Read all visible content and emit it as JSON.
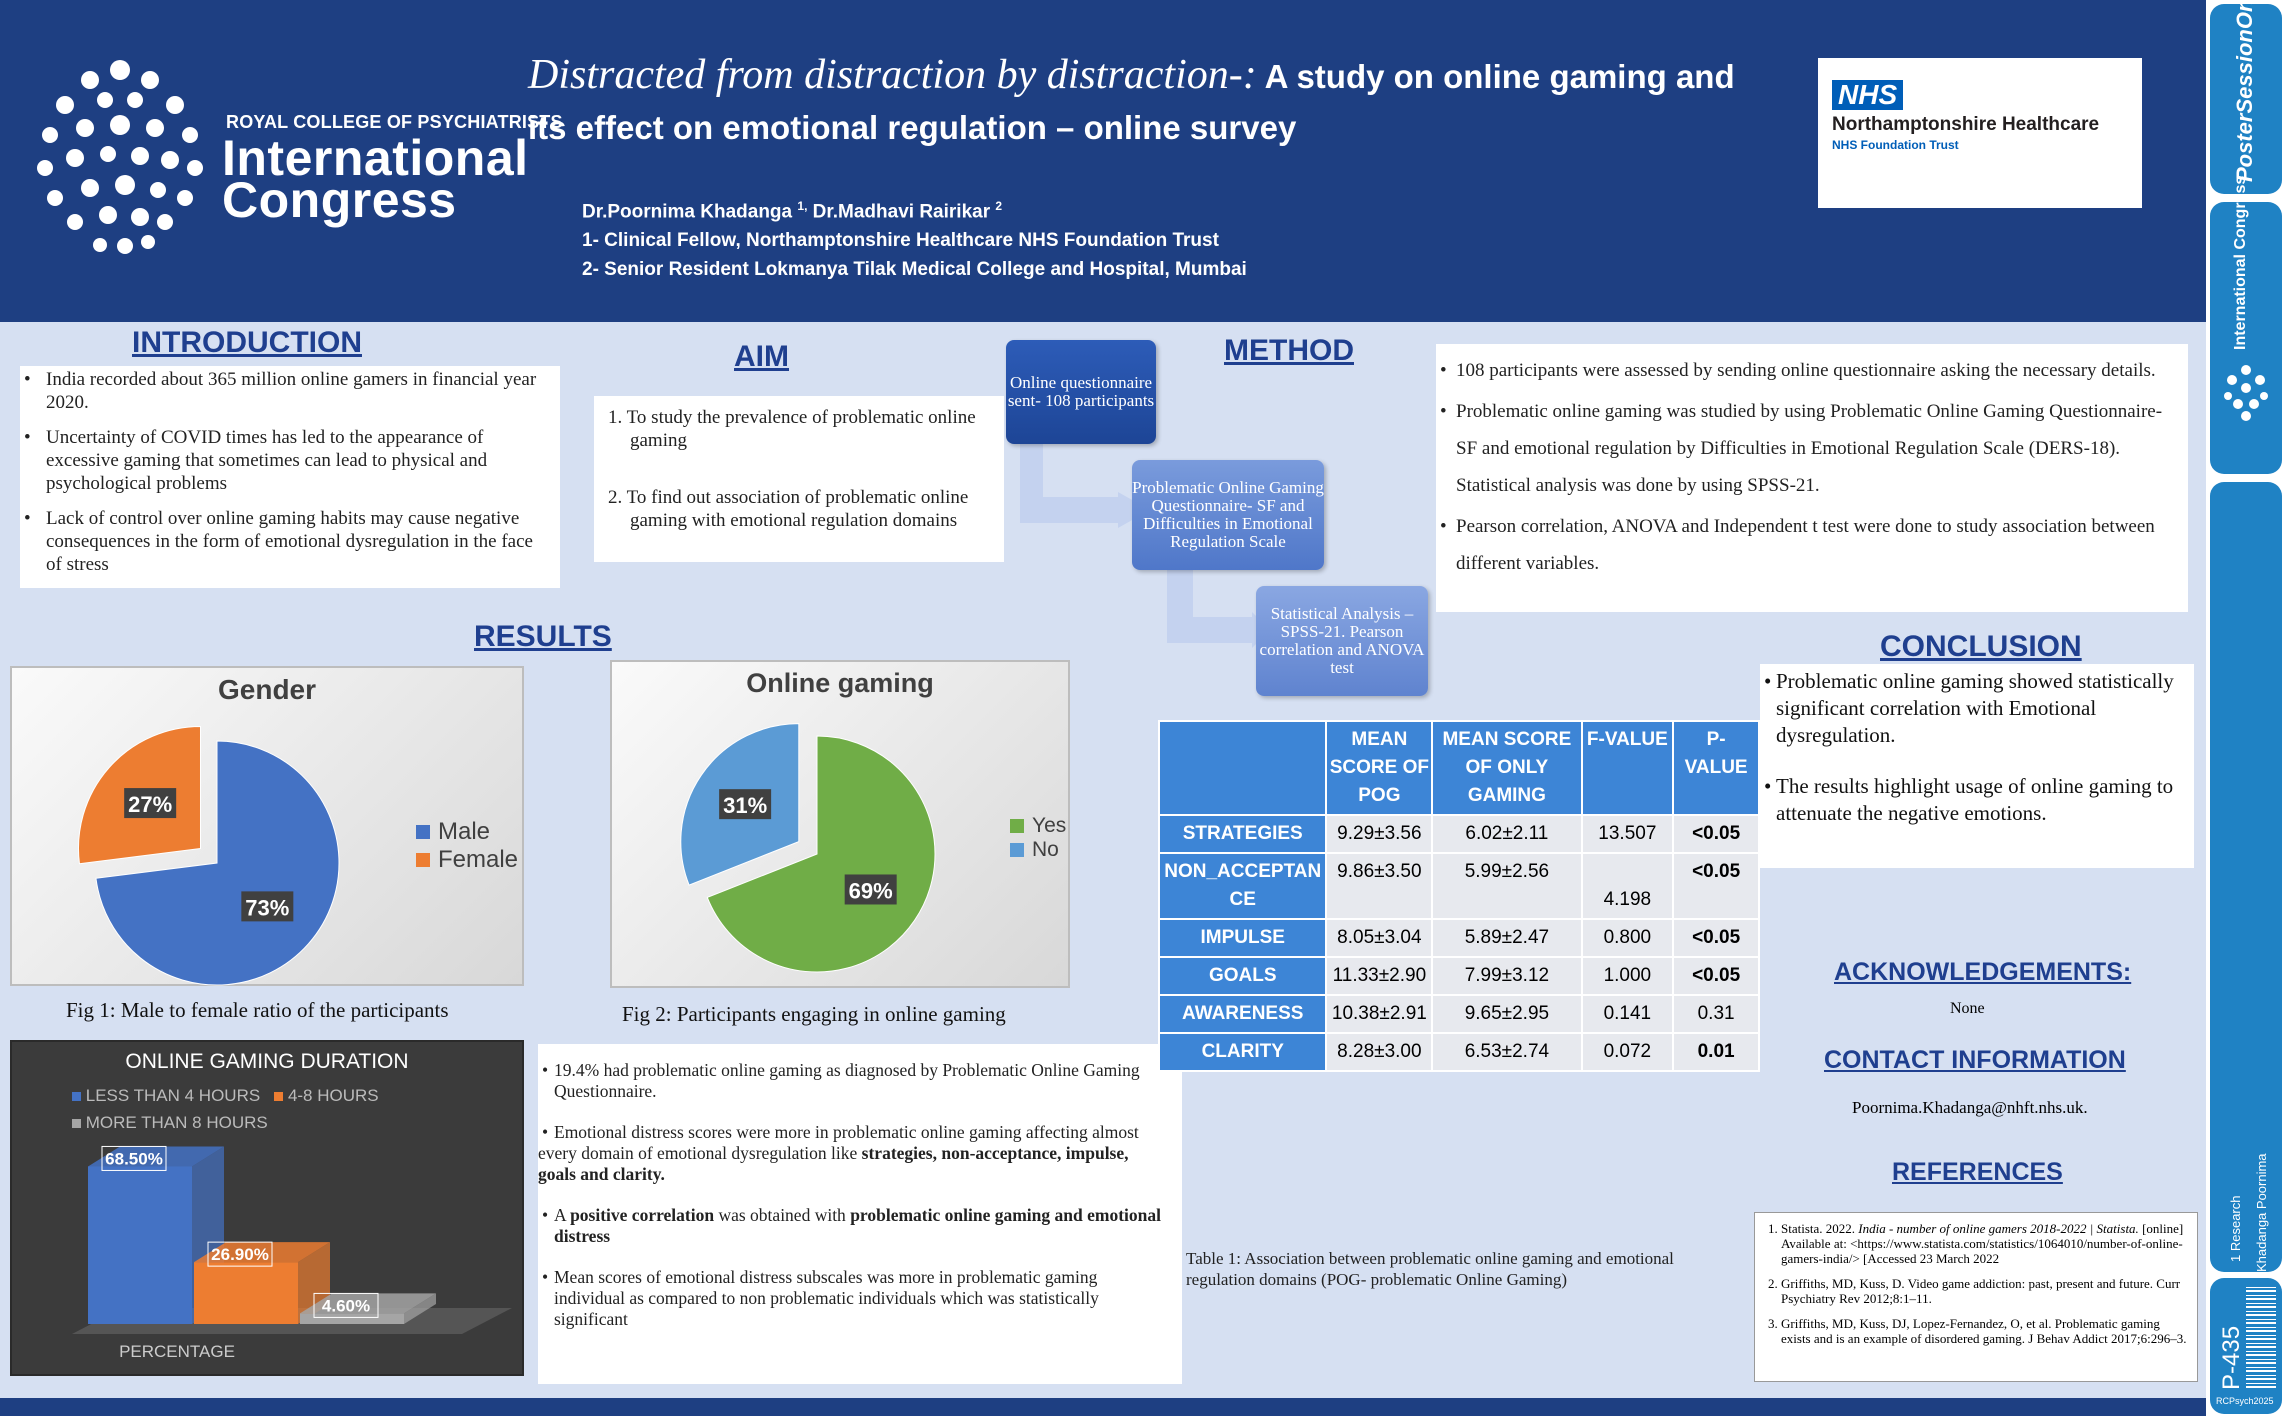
{
  "header": {
    "logo_line1": "ROYAL COLLEGE OF PSYCHIATRISTS",
    "logo_line2": "International",
    "logo_line3": "Congress",
    "title_italic": "Distracted from distraction by distraction-:",
    "title_rest_a": " A study on online gaming and",
    "title_rest_b": "its effect on emotional regulation – online survey",
    "authors": "Dr.Poornima Khadanga",
    "authors_sup1": "1,",
    "authors_2": " Dr.Madhavi Rairikar",
    "authors_sup2": "2",
    "affil1": "1- Clinical Fellow, Northamptonshire Healthcare NHS Foundation Trust",
    "affil2": "2- Senior Resident Lokmanya Tilak Medical College and Hospital, Mumbai",
    "nhs_logo": "NHS",
    "nhs_org": "Northamptonshire Healthcare",
    "nhs_trust": "NHS Foundation Trust"
  },
  "sidebar": {
    "brand": "PosterSessionOnline",
    "congress": "International Congress",
    "category": "1 Research",
    "author": "Khadanga Poornima",
    "poster_id": "P-435",
    "footer_code": "RCPsych2025"
  },
  "introduction": {
    "title": "INTRODUCTION",
    "bullets": [
      "India recorded about 365 million online gamers in financial year 2020.",
      "Uncertainty of COVID times has led to the appearance of excessive gaming that sometimes can lead to physical and psychological problems",
      "Lack of control over online gaming habits may cause negative consequences in the form of emotional dysregulation in the face of stress"
    ]
  },
  "aim": {
    "title": "AIM",
    "items": [
      "1. To study the prevalence of problematic online gaming",
      "2. To find out association of problematic online gaming with emotional regulation domains"
    ]
  },
  "method": {
    "title": "METHOD",
    "flow": [
      "Online questionnaire sent- 108 participants",
      "Problematic Online Gaming Questionnaire- SF and Difficulties in Emotional Regulation Scale",
      "Statistical Analysis – SPSS-21. Pearson correlation and ANOVA test"
    ],
    "bullets": [
      "108 participants were assessed by sending online questionnaire asking the necessary details.",
      "Problematic online gaming was studied by using Problematic Online Gaming Questionnaire- SF and emotional regulation by Difficulties in Emotional Regulation Scale (DERS-18). Statistical analysis was done by using SPSS-21.",
      "Pearson correlation, ANOVA and Independent t test were done to study association between different variables."
    ]
  },
  "results": {
    "title": "RESULTS",
    "fig1_caption": "Fig 1: Male  to female ratio of the participants",
    "fig2_caption": "Fig 2: Participants engaging in online gaming",
    "findings": [
      {
        "pre": "19.4% had problematic online gaming as diagnosed by Problematic Online Gaming Questionnaire.",
        "bold": "",
        "post": ""
      },
      {
        "pre": "Emotional distress scores were more in problematic online gaming affecting almost every domain of emotional dysregulation like ",
        "bold": "strategies, non-acceptance, impulse, goals and clarity.",
        "post": ""
      },
      {
        "pre": "A ",
        "bold": "positive correlation",
        "mid": " was obtained with ",
        "bold2": "problematic online gaming and emotional distress"
      },
      {
        "pre": "Mean scores of emotional distress subscales was more in problematic gaming individual as compared to non problematic individuals which was statistically significant",
        "bold": "",
        "post": ""
      }
    ]
  },
  "chart_data": [
    {
      "type": "pie",
      "title": "Gender",
      "categories": [
        "Male",
        "Female"
      ],
      "values": [
        73,
        27
      ],
      "labels": [
        "73%",
        "27%"
      ],
      "colors": [
        "#4472c4",
        "#ed7d31"
      ],
      "legend": "right"
    },
    {
      "type": "pie",
      "title": "Online gaming",
      "categories": [
        "Yes",
        "No"
      ],
      "values": [
        69,
        31
      ],
      "labels": [
        "69%",
        "31%"
      ],
      "colors": [
        "#70ad47",
        "#5b9bd5"
      ],
      "legend": "right"
    },
    {
      "type": "bar",
      "title": "ONLINE GAMING DURATION",
      "categories": [
        "LESS THAN 4 HOURS",
        "4-8 HOURS",
        "MORE THAN 8 HOURS"
      ],
      "values": [
        68.5,
        26.9,
        4.6
      ],
      "labels": [
        "68.50%",
        "26.90%",
        "4.60%"
      ],
      "colors": [
        "#4472c4",
        "#ed7d31",
        "#a5a5a5"
      ],
      "xlabel": "PERCENTAGE",
      "legend": "top-left",
      "ylim": [
        0,
        80
      ]
    }
  ],
  "table": {
    "headers": [
      "",
      "MEAN SCORE OF POG",
      "MEAN SCORE OF ONLY GAMING",
      "F-VALUE",
      "P-VALUE"
    ],
    "rows": [
      [
        "STRATEGIES",
        "9.29±3.56",
        "6.02±2.11",
        "13.507",
        "<0.05"
      ],
      [
        "NON_ACCEPTANCE",
        "9.86±3.50",
        "5.99±2.56",
        "4.198",
        "<0.05"
      ],
      [
        "IMPULSE",
        "8.05±3.04",
        "5.89±2.47",
        "0.800",
        "<0.05"
      ],
      [
        "GOALS",
        "11.33±2.90",
        "7.99±3.12",
        "1.000",
        "<0.05"
      ],
      [
        "AWARENESS",
        "10.38±2.91",
        "9.65±2.95",
        "0.141",
        "0.31"
      ],
      [
        "CLARITY",
        "8.28±3.00",
        "6.53±2.74",
        "0.072",
        "0.01"
      ]
    ],
    "caption": "Table 1: Association between problematic online gaming and emotional regulation domains (POG- problematic Online Gaming)"
  },
  "conclusion": {
    "title": "CONCLUSION",
    "bullets": [
      "Problematic online gaming showed statistically significant correlation with Emotional dysregulation.",
      "The results highlight usage of online gaming to attenuate the negative emotions."
    ]
  },
  "acknowledgements": {
    "title": "ACKNOWLEDGEMENTS:",
    "text": "None"
  },
  "contact": {
    "title": "CONTACT INFORMATION",
    "email": "Poornima.Khadanga@nhft.nhs.uk."
  },
  "references": {
    "title": "REFERENCES",
    "items": [
      {
        "pre": "Statista. 2022. ",
        "it": "India - number of online gamers 2018-2022 | Statista.",
        "post": " [online] Available at: <https://www.statista.com/statistics/1064010/number-of-online-gamers-india/> [Accessed 23 March 2022"
      },
      {
        "pre": "Griffiths, MD, Kuss, D. Video game addiction: past, present and future. Curr Psychiatry Rev 2012;8:1–11.",
        "it": "",
        "post": ""
      },
      {
        "pre": "Griffiths, MD, Kuss, DJ, Lopez-Fernandez, O, et al. Problematic gaming exists and is an example of disordered gaming. J Behav Addict 2017;6:296–3.",
        "it": "",
        "post": ""
      }
    ]
  }
}
